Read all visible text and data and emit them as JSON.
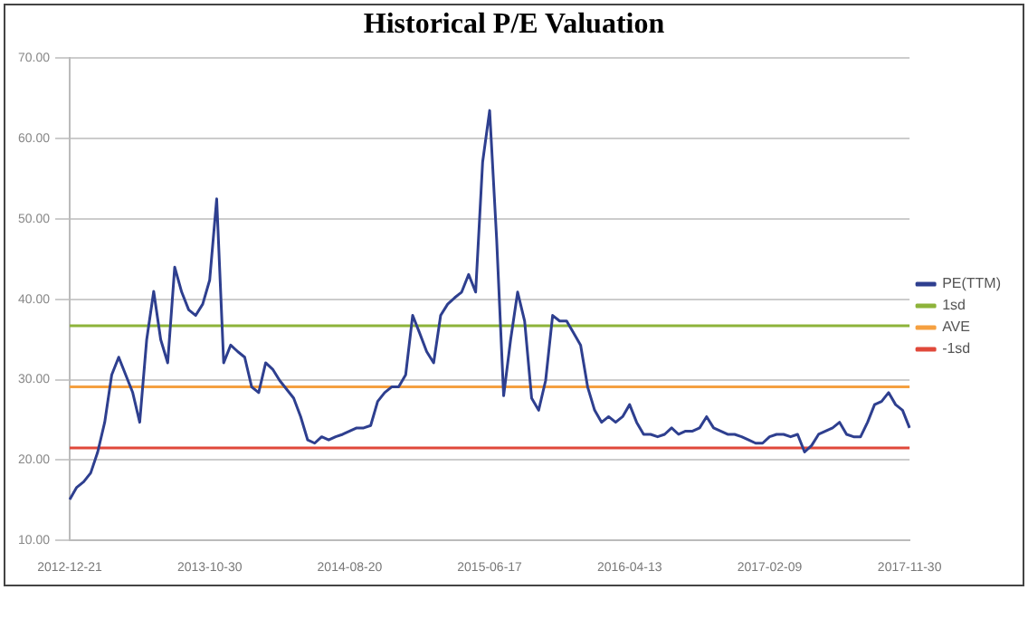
{
  "chart_data": {
    "type": "line",
    "title": "Historical P/E Valuation",
    "categories": [
      "2012-12-21",
      null,
      null,
      null,
      null,
      null,
      null,
      null,
      null,
      null,
      null,
      null,
      null,
      null,
      null,
      null,
      null,
      null,
      null,
      null,
      "2013-10-30",
      null,
      null,
      null,
      null,
      null,
      null,
      null,
      null,
      null,
      null,
      null,
      null,
      null,
      null,
      null,
      null,
      null,
      null,
      null,
      "2014-08-20",
      null,
      null,
      null,
      null,
      null,
      null,
      null,
      null,
      null,
      null,
      null,
      null,
      null,
      null,
      null,
      null,
      null,
      null,
      null,
      "2015-06-17",
      null,
      null,
      null,
      null,
      null,
      null,
      null,
      null,
      null,
      null,
      null,
      null,
      null,
      null,
      null,
      null,
      null,
      null,
      null,
      "2016-04-13",
      null,
      null,
      null,
      null,
      null,
      null,
      null,
      null,
      null,
      null,
      null,
      null,
      null,
      null,
      null,
      null,
      null,
      null,
      null,
      "2017-02-09",
      null,
      null,
      null,
      null,
      null,
      null,
      null,
      null,
      null,
      null,
      null,
      null,
      null,
      null,
      null,
      null,
      null,
      null,
      null,
      "2017-11-30"
    ],
    "series": [
      {
        "name": "PE(TTM)",
        "color": "#2e3f8f",
        "values": [
          15.1,
          16.6,
          17.3,
          18.4,
          21.0,
          24.7,
          30.6,
          32.8,
          30.6,
          28.4,
          24.7,
          35.0,
          41.0,
          35.0,
          32.1,
          44.0,
          40.9,
          38.7,
          38.0,
          39.4,
          42.4,
          52.5,
          32.1,
          34.3,
          33.5,
          32.8,
          29.1,
          28.4,
          32.1,
          31.3,
          29.9,
          28.8,
          27.7,
          25.4,
          22.5,
          22.1,
          22.9,
          22.5,
          22.9,
          23.2,
          23.6,
          24.0,
          24.0,
          24.3,
          27.3,
          28.4,
          29.1,
          29.1,
          30.6,
          38.0,
          35.8,
          33.5,
          32.1,
          38.0,
          39.4,
          40.2,
          40.9,
          43.1,
          40.9,
          57.1,
          63.5,
          47.5,
          28.0,
          35.0,
          40.9,
          37.3,
          27.7,
          26.2,
          29.9,
          38.0,
          37.3,
          37.3,
          35.8,
          34.3,
          29.1,
          26.2,
          24.7,
          25.4,
          24.7,
          25.4,
          26.9,
          24.7,
          23.2,
          23.2,
          22.9,
          23.2,
          24.0,
          23.2,
          23.6,
          23.6,
          24.0,
          25.4,
          24.0,
          23.6,
          23.2,
          23.2,
          22.9,
          22.5,
          22.1,
          22.1,
          22.9,
          23.2,
          23.2,
          22.9,
          23.2,
          21.0,
          21.8,
          23.2,
          23.6,
          24.0,
          24.7,
          23.2,
          22.9,
          22.9,
          24.7,
          26.9,
          27.3,
          28.4,
          26.9,
          26.2,
          24.0
        ]
      },
      {
        "name": "1sd",
        "color": "#8db33a",
        "values": [
          36.7,
          36.7,
          36.7,
          36.7,
          36.7,
          36.7,
          36.7,
          36.7,
          36.7,
          36.7,
          36.7,
          36.7,
          36.7,
          36.7,
          36.7,
          36.7,
          36.7,
          36.7,
          36.7,
          36.7,
          36.7,
          36.7,
          36.7,
          36.7,
          36.7,
          36.7,
          36.7,
          36.7,
          36.7,
          36.7,
          36.7,
          36.7,
          36.7,
          36.7,
          36.7,
          36.7,
          36.7,
          36.7,
          36.7,
          36.7,
          36.7,
          36.7,
          36.7,
          36.7,
          36.7,
          36.7,
          36.7,
          36.7,
          36.7,
          36.7,
          36.7,
          36.7,
          36.7,
          36.7,
          36.7,
          36.7,
          36.7,
          36.7,
          36.7,
          36.7,
          36.7,
          36.7,
          36.7,
          36.7,
          36.7,
          36.7,
          36.7,
          36.7,
          36.7,
          36.7,
          36.7,
          36.7,
          36.7,
          36.7,
          36.7,
          36.7,
          36.7,
          36.7,
          36.7,
          36.7,
          36.7,
          36.7,
          36.7,
          36.7,
          36.7,
          36.7,
          36.7,
          36.7,
          36.7,
          36.7,
          36.7,
          36.7,
          36.7,
          36.7,
          36.7,
          36.7,
          36.7,
          36.7,
          36.7,
          36.7,
          36.7,
          36.7,
          36.7,
          36.7,
          36.7,
          36.7,
          36.7,
          36.7,
          36.7,
          36.7,
          36.7,
          36.7,
          36.7,
          36.7,
          36.7,
          36.7,
          36.7,
          36.7,
          36.7,
          36.7,
          36.7
        ]
      },
      {
        "name": "AVE",
        "color": "#f5a040",
        "values": [
          29.1,
          29.1,
          29.1,
          29.1,
          29.1,
          29.1,
          29.1,
          29.1,
          29.1,
          29.1,
          29.1,
          29.1,
          29.1,
          29.1,
          29.1,
          29.1,
          29.1,
          29.1,
          29.1,
          29.1,
          29.1,
          29.1,
          29.1,
          29.1,
          29.1,
          29.1,
          29.1,
          29.1,
          29.1,
          29.1,
          29.1,
          29.1,
          29.1,
          29.1,
          29.1,
          29.1,
          29.1,
          29.1,
          29.1,
          29.1,
          29.1,
          29.1,
          29.1,
          29.1,
          29.1,
          29.1,
          29.1,
          29.1,
          29.1,
          29.1,
          29.1,
          29.1,
          29.1,
          29.1,
          29.1,
          29.1,
          29.1,
          29.1,
          29.1,
          29.1,
          29.1,
          29.1,
          29.1,
          29.1,
          29.1,
          29.1,
          29.1,
          29.1,
          29.1,
          29.1,
          29.1,
          29.1,
          29.1,
          29.1,
          29.1,
          29.1,
          29.1,
          29.1,
          29.1,
          29.1,
          29.1,
          29.1,
          29.1,
          29.1,
          29.1,
          29.1,
          29.1,
          29.1,
          29.1,
          29.1,
          29.1,
          29.1,
          29.1,
          29.1,
          29.1,
          29.1,
          29.1,
          29.1,
          29.1,
          29.1,
          29.1,
          29.1,
          29.1,
          29.1,
          29.1,
          29.1,
          29.1,
          29.1,
          29.1,
          29.1,
          29.1,
          29.1,
          29.1,
          29.1,
          29.1,
          29.1,
          29.1,
          29.1,
          29.1,
          29.1,
          29.1
        ]
      },
      {
        "name": "-1sd",
        "color": "#e0483a",
        "values": [
          21.5,
          21.5,
          21.5,
          21.5,
          21.5,
          21.5,
          21.5,
          21.5,
          21.5,
          21.5,
          21.5,
          21.5,
          21.5,
          21.5,
          21.5,
          21.5,
          21.5,
          21.5,
          21.5,
          21.5,
          21.5,
          21.5,
          21.5,
          21.5,
          21.5,
          21.5,
          21.5,
          21.5,
          21.5,
          21.5,
          21.5,
          21.5,
          21.5,
          21.5,
          21.5,
          21.5,
          21.5,
          21.5,
          21.5,
          21.5,
          21.5,
          21.5,
          21.5,
          21.5,
          21.5,
          21.5,
          21.5,
          21.5,
          21.5,
          21.5,
          21.5,
          21.5,
          21.5,
          21.5,
          21.5,
          21.5,
          21.5,
          21.5,
          21.5,
          21.5,
          21.5,
          21.5,
          21.5,
          21.5,
          21.5,
          21.5,
          21.5,
          21.5,
          21.5,
          21.5,
          21.5,
          21.5,
          21.5,
          21.5,
          21.5,
          21.5,
          21.5,
          21.5,
          21.5,
          21.5,
          21.5,
          21.5,
          21.5,
          21.5,
          21.5,
          21.5,
          21.5,
          21.5,
          21.5,
          21.5,
          21.5,
          21.5,
          21.5,
          21.5,
          21.5,
          21.5,
          21.5,
          21.5,
          21.5,
          21.5,
          21.5,
          21.5,
          21.5,
          21.5,
          21.5,
          21.5,
          21.5,
          21.5,
          21.5,
          21.5,
          21.5,
          21.5,
          21.5,
          21.5,
          21.5,
          21.5,
          21.5,
          21.5,
          21.5,
          21.5,
          21.5
        ]
      }
    ],
    "ylim": [
      10,
      70
    ],
    "yticks": [
      {
        "value": 10,
        "label": "10.00"
      },
      {
        "value": 20,
        "label": "20.00"
      },
      {
        "value": 30,
        "label": "30.00"
      },
      {
        "value": 40,
        "label": "40.00"
      },
      {
        "value": 50,
        "label": "50.00"
      },
      {
        "value": 60,
        "label": "60.00"
      },
      {
        "value": 70,
        "label": "70.00"
      }
    ],
    "grid": "y",
    "legend": "right",
    "marker": "none",
    "line_style": "solid"
  }
}
